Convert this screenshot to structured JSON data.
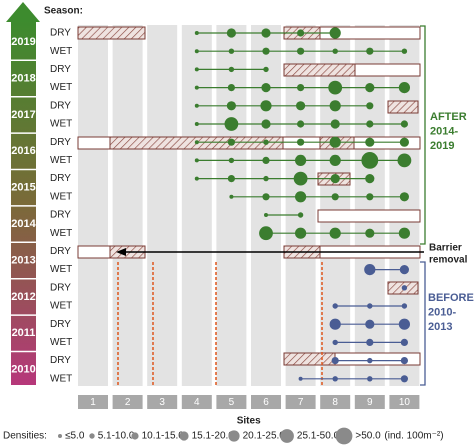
{
  "chart_data": {
    "type": "dot-matrix",
    "season_label": "Season:",
    "x_label": "Sites",
    "categories": [
      1,
      2,
      3,
      4,
      5,
      6,
      7,
      8,
      9,
      10
    ],
    "years": [
      2019,
      2018,
      2017,
      2016,
      2015,
      2014,
      2013,
      2012,
      2011,
      2010
    ],
    "legend_title": "Densities:",
    "density_classes": [
      "≤5.0",
      "5.1-10.0",
      "10.1-15.0",
      "15.1-20.0",
      "20.1-25.0",
      "25.1-50.0",
      ">50.0"
    ],
    "density_unit": "(ind. 100m⁻²)",
    "after_label": [
      "AFTER",
      "2014-",
      "2019"
    ],
    "before_label": [
      "BEFORE",
      "2010-",
      "2013"
    ],
    "barrier_label": [
      "Barrier",
      "removal"
    ],
    "rows": [
      {
        "season": "DRY",
        "color": "#3b7d2f",
        "values": [
          null,
          null,
          null,
          "≤5.0",
          "15.1-20.0",
          "15.1-20.0",
          "10.1-15.0",
          "20.1-25.0",
          null,
          null
        ]
      },
      {
        "season": "WET",
        "color": "#3b7d2f",
        "values": [
          null,
          null,
          null,
          "≤5.0",
          "5.1-10.0",
          "10.1-15.0",
          "10.1-15.0",
          "5.1-10.0",
          "10.1-15.0",
          "5.1-10.0"
        ]
      },
      {
        "season": "DRY",
        "color": "#3b7d2f",
        "values": [
          null,
          null,
          null,
          "≤5.0",
          "5.1-10.0",
          "5.1-10.0",
          null,
          null,
          null,
          null
        ]
      },
      {
        "season": "WET",
        "color": "#3b7d2f",
        "values": [
          null,
          null,
          null,
          "≤5.0",
          "10.1-15.0",
          "15.1-20.0",
          "10.1-15.0",
          "25.1-50.0",
          "15.1-20.0",
          "20.1-25.0"
        ]
      },
      {
        "season": "DRY",
        "color": "#3b7d2f",
        "values": [
          null,
          null,
          null,
          "≤5.0",
          "15.1-20.0",
          "20.1-25.0",
          "15.1-20.0",
          "20.1-25.0",
          "10.1-15.0",
          null
        ]
      },
      {
        "season": "WET",
        "color": "#3b7d2f",
        "values": [
          null,
          null,
          null,
          "≤5.0",
          "25.1-50.0",
          "15.1-20.0",
          "10.1-15.0",
          "15.1-20.0",
          "10.1-15.0",
          "10.1-15.0"
        ]
      },
      {
        "season": "DRY",
        "color": "#3b7d2f",
        "values": [
          null,
          null,
          null,
          "≤5.0",
          "10.1-15.0",
          "5.1-10.0",
          "10.1-15.0",
          "20.1-25.0",
          "15.1-20.0",
          "15.1-20.0"
        ]
      },
      {
        "season": "WET",
        "color": "#3b7d2f",
        "values": [
          null,
          null,
          null,
          "≤5.0",
          "5.1-10.0",
          "10.1-15.0",
          "20.1-25.0",
          "20.1-25.0",
          ">50.0",
          "25.1-50.0"
        ]
      },
      {
        "season": "DRY",
        "color": "#3b7d2f",
        "values": [
          null,
          null,
          null,
          "≤5.0",
          "10.1-15.0",
          "5.1-10.0",
          "25.1-50.0",
          "15.1-20.0",
          "15.1-20.0",
          null
        ]
      },
      {
        "season": "WET",
        "color": "#3b7d2f",
        "values": [
          null,
          null,
          null,
          null,
          "≤5.0",
          "10.1-15.0",
          "20.1-25.0",
          "10.1-15.0",
          "10.1-15.0",
          "15.1-20.0"
        ]
      },
      {
        "season": "DRY",
        "color": "#3b7d2f",
        "values": [
          null,
          null,
          null,
          null,
          null,
          "≤5.0",
          "5.1-10.0",
          null,
          null,
          null
        ]
      },
      {
        "season": "WET",
        "color": "#3b7d2f",
        "values": [
          null,
          null,
          null,
          null,
          null,
          "25.1-50.0",
          "20.1-25.0",
          "20.1-25.0",
          "15.1-20.0",
          "20.1-25.0"
        ]
      },
      {
        "season": "DRY",
        "color": "#4a5d94",
        "values": [
          null,
          null,
          null,
          null,
          null,
          null,
          null,
          null,
          null,
          null
        ]
      },
      {
        "season": "WET",
        "color": "#4a5d94",
        "values": [
          null,
          null,
          null,
          null,
          null,
          null,
          null,
          null,
          "20.1-25.0",
          "15.1-20.0"
        ]
      },
      {
        "season": "DRY",
        "color": "#4a5d94",
        "values": [
          null,
          null,
          null,
          null,
          null,
          null,
          null,
          null,
          null,
          "5.1-10.0"
        ]
      },
      {
        "season": "WET",
        "color": "#4a5d94",
        "values": [
          null,
          null,
          null,
          null,
          null,
          null,
          null,
          "5.1-10.0",
          "5.1-10.0",
          "5.1-10.0"
        ]
      },
      {
        "season": "DRY",
        "color": "#4a5d94",
        "values": [
          null,
          null,
          null,
          null,
          null,
          null,
          null,
          "20.1-25.0",
          "15.1-20.0",
          "20.1-25.0"
        ]
      },
      {
        "season": "WET",
        "color": "#4a5d94",
        "values": [
          null,
          null,
          null,
          null,
          null,
          null,
          null,
          "5.1-10.0",
          "10.1-15.0",
          "10.1-15.0"
        ]
      },
      {
        "season": "DRY",
        "color": "#4a5d94",
        "values": [
          null,
          null,
          null,
          null,
          null,
          null,
          null,
          "10.1-15.0",
          "5.1-10.0",
          "10.1-15.0"
        ]
      },
      {
        "season": "WET",
        "color": "#4a5d94",
        "values": [
          null,
          null,
          null,
          null,
          null,
          null,
          "≤5.0",
          "5.1-10.0",
          "5.1-10.0",
          "10.1-15.0"
        ]
      }
    ]
  }
}
